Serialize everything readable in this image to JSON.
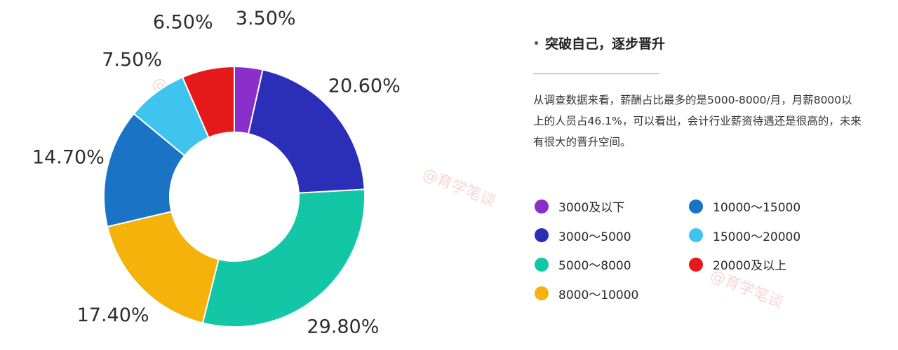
{
  "chart_data": {
    "type": "pie",
    "title": "",
    "categories": [
      "3000及以下",
      "3000～5000",
      "5000～8000",
      "8000～10000",
      "10000～15000",
      "15000～20000",
      "20000及以上"
    ],
    "values": [
      3.5,
      20.6,
      29.8,
      17.4,
      14.7,
      7.5,
      6.5
    ],
    "value_labels": [
      "3.50%",
      "20.60%",
      "29.80%",
      "17.40%",
      "14.70%",
      "7.50%",
      "6.50%"
    ],
    "colors": [
      "#8a2fc9",
      "#2b2fb8",
      "#12c6a6",
      "#f5b20a",
      "#1b73c6",
      "#3fc3ef",
      "#e6191a"
    ],
    "donut": true,
    "legend_position": "right"
  },
  "panel": {
    "heading": "突破自己，逐步晋升",
    "description": "从调查数据来看，薪酬占比最多的是5000-8000/月，月薪8000以上的人员占46.1%，可以看出，会计行业薪资待遇还是很高的，未来有很大的晋升空间。"
  },
  "legend": [
    {
      "label": "3000及以下",
      "color": "#8a2fc9"
    },
    {
      "label": "3000～5000",
      "color": "#2b2fb8"
    },
    {
      "label": "5000～8000",
      "color": "#12c6a6"
    },
    {
      "label": "8000～10000",
      "color": "#f5b20a"
    },
    {
      "label": "10000～15000",
      "color": "#1b73c6"
    },
    {
      "label": "15000～20000",
      "color": "#3fc3ef"
    },
    {
      "label": "20000及以上",
      "color": "#e6191a"
    }
  ],
  "watermark": "@育学笔谈"
}
